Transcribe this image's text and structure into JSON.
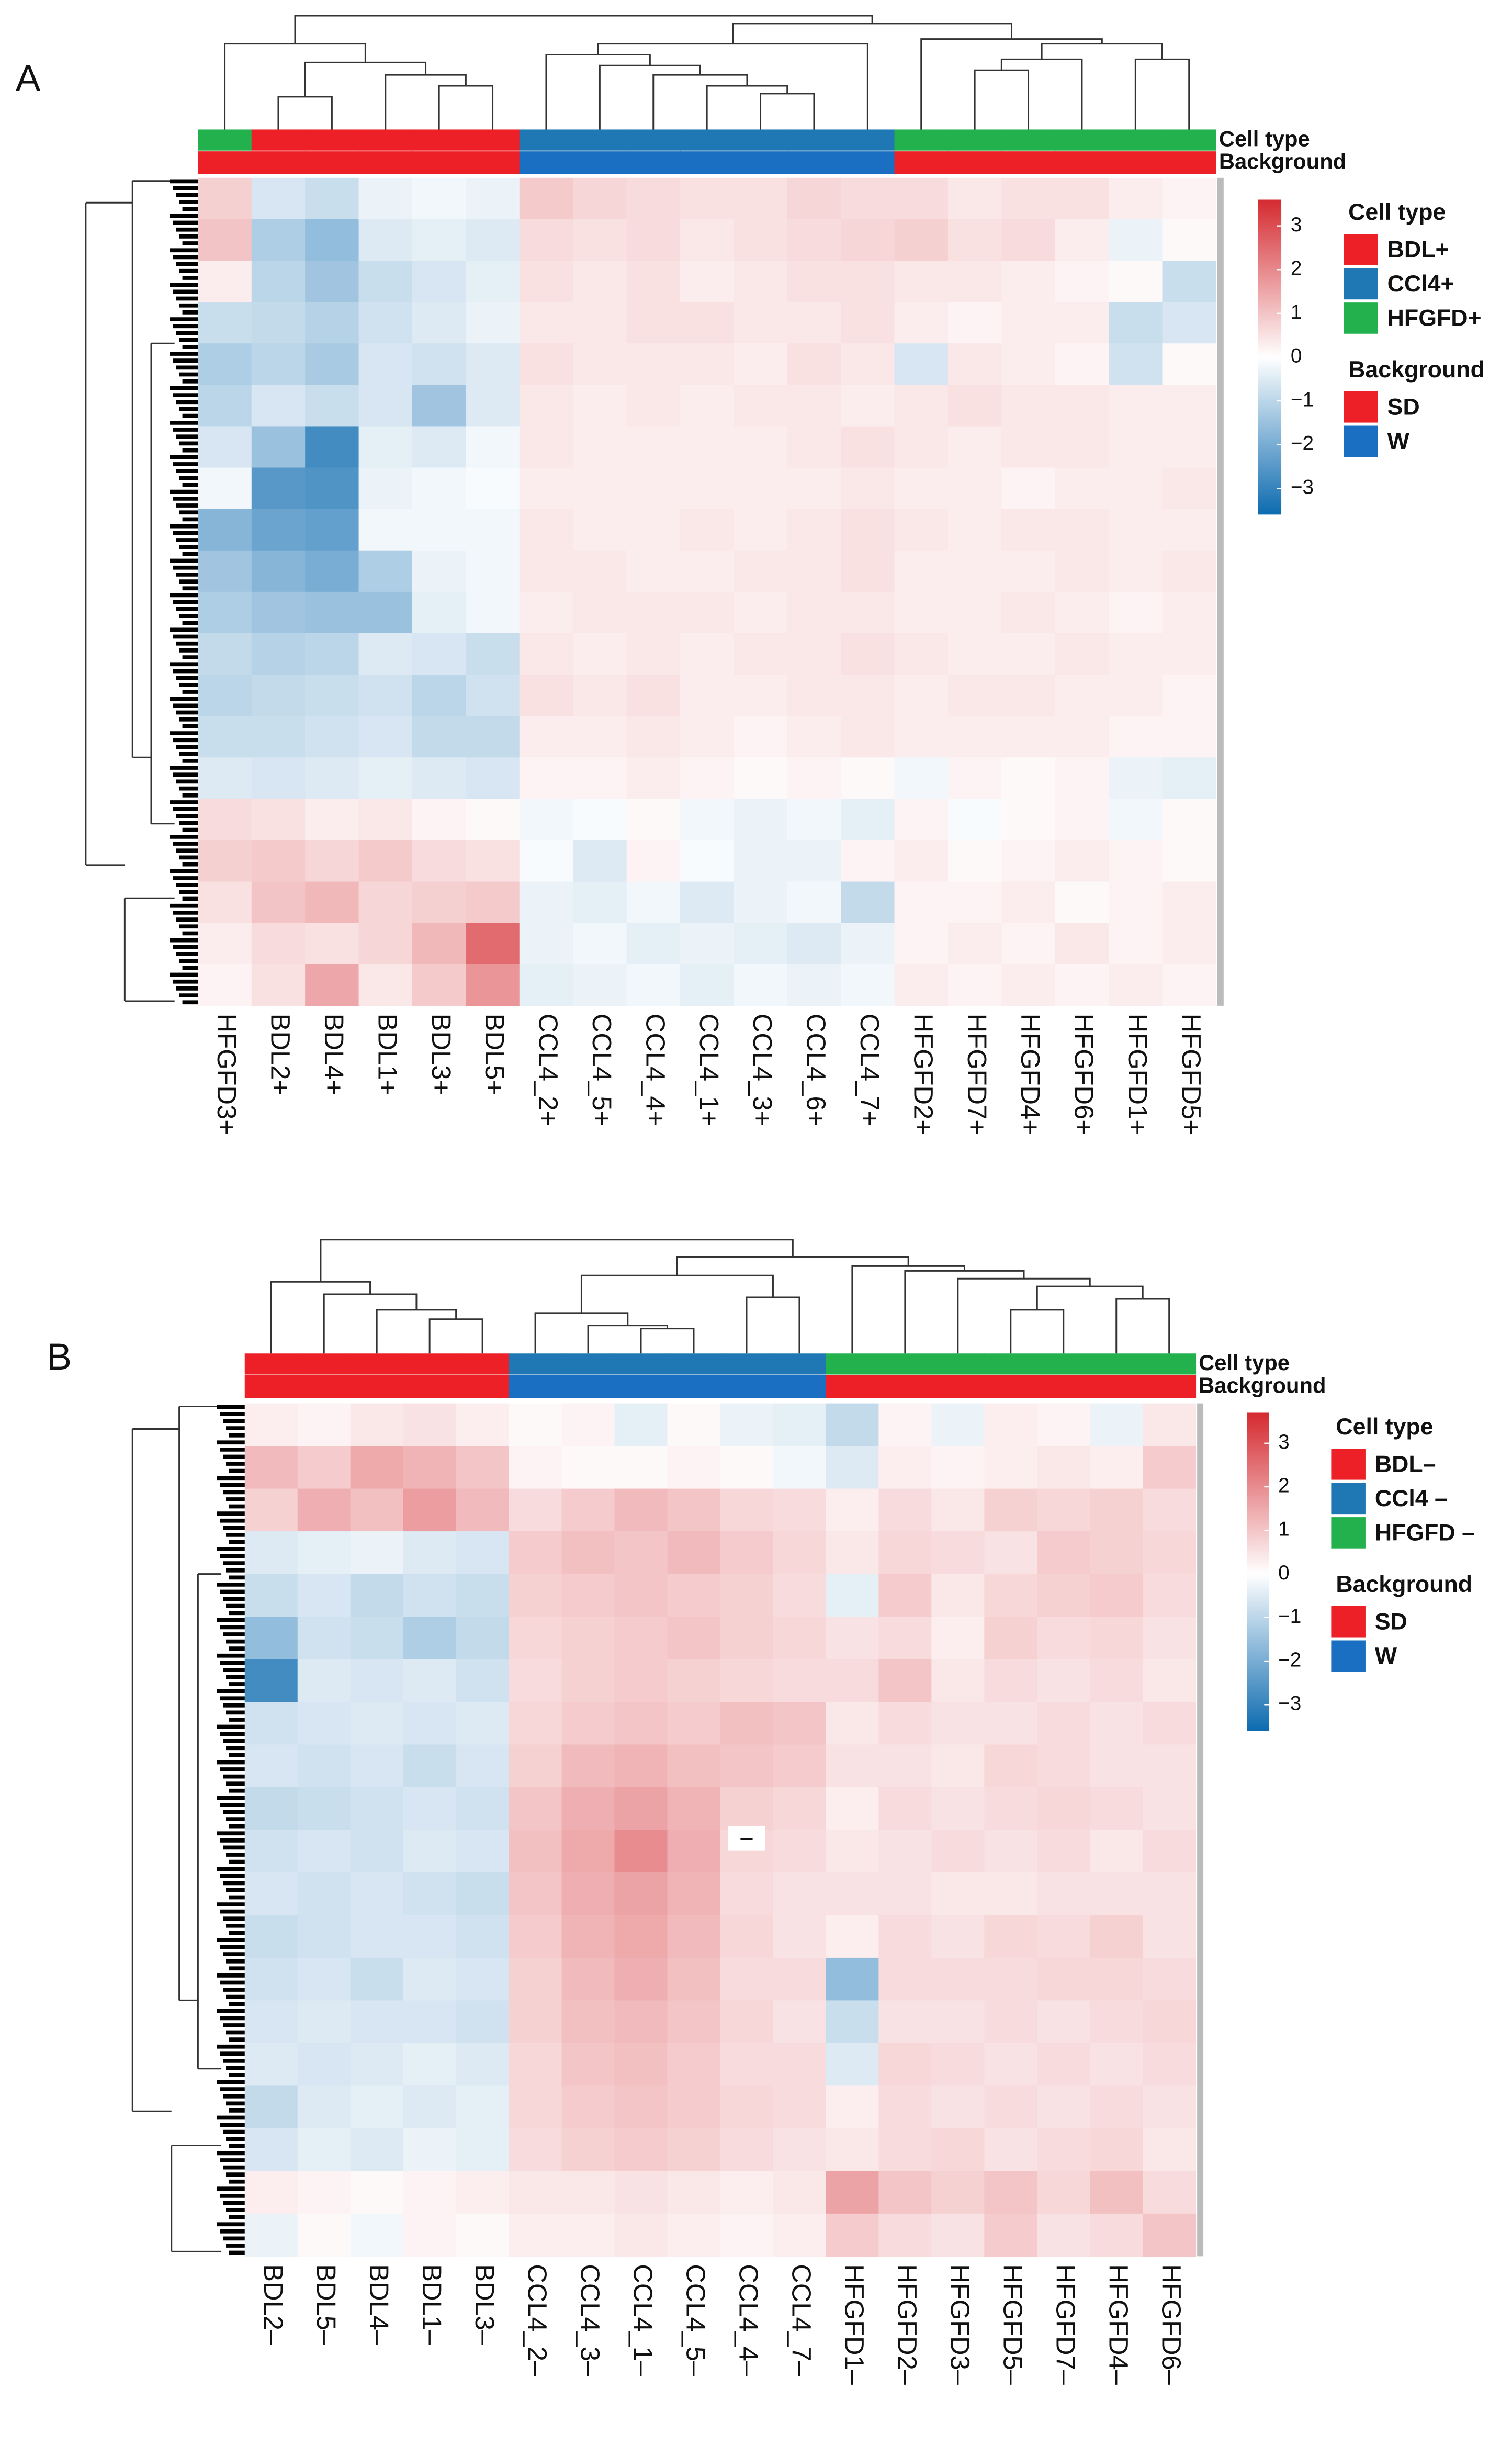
{
  "chart_data": [
    {
      "type": "heatmap",
      "panel": "A",
      "columns": [
        "HFGFD3+",
        "BDL2+",
        "BDL4+",
        "BDL1+",
        "BDL3+",
        "BDL5+",
        "CCL4_2+",
        "CCL4_5+",
        "CCL4_4+",
        "CCL4_1+",
        "CCL4_3+",
        "CCL4_6+",
        "CCL4_7+",
        "HFGFD2+",
        "HFGFD7+",
        "HFGFD4+",
        "HFGFD6+",
        "HFGFD1+",
        "HFGFD5+"
      ],
      "values": [
        [
          0.8,
          -0.6,
          -0.8,
          -0.3,
          -0.2,
          -0.3,
          0.9,
          0.7,
          0.6,
          0.5,
          0.5,
          0.7,
          0.6,
          0.6,
          0.4,
          0.5,
          0.5,
          0.3,
          0.2
        ],
        [
          1.0,
          -1.2,
          -1.6,
          -0.5,
          -0.4,
          -0.5,
          0.6,
          0.5,
          0.6,
          0.4,
          0.5,
          0.6,
          0.7,
          0.8,
          0.5,
          0.6,
          0.3,
          -0.3,
          0.1
        ],
        [
          0.3,
          -1.0,
          -1.4,
          -0.8,
          -0.6,
          -0.4,
          0.5,
          0.4,
          0.5,
          0.3,
          0.4,
          0.5,
          0.5,
          0.4,
          0.4,
          0.3,
          0.2,
          0.1,
          -0.8
        ],
        [
          -0.8,
          -0.9,
          -1.1,
          -0.7,
          -0.5,
          -0.3,
          0.4,
          0.4,
          0.5,
          0.5,
          0.4,
          0.4,
          0.5,
          0.3,
          0.2,
          0.3,
          0.3,
          -0.8,
          -0.6
        ],
        [
          -1.2,
          -1.0,
          -1.3,
          -0.6,
          -0.7,
          -0.5,
          0.5,
          0.4,
          0.4,
          0.4,
          0.3,
          0.5,
          0.4,
          -0.6,
          0.4,
          0.3,
          0.2,
          -0.7,
          0.1
        ],
        [
          -1.0,
          -0.6,
          -0.8,
          -0.6,
          -1.4,
          -0.5,
          0.4,
          0.3,
          0.4,
          0.3,
          0.4,
          0.4,
          0.3,
          0.4,
          0.5,
          0.4,
          0.4,
          0.3,
          0.3
        ],
        [
          -0.6,
          -1.5,
          -2.8,
          -0.4,
          -0.5,
          -0.2,
          0.4,
          0.3,
          0.3,
          0.3,
          0.3,
          0.4,
          0.5,
          0.4,
          0.3,
          0.4,
          0.4,
          0.3,
          0.3
        ],
        [
          -0.2,
          -2.5,
          -2.6,
          -0.3,
          -0.2,
          -0.1,
          0.3,
          0.3,
          0.3,
          0.3,
          0.3,
          0.3,
          0.4,
          0.3,
          0.3,
          0.2,
          0.3,
          0.3,
          0.4
        ],
        [
          -1.8,
          -2.2,
          -2.3,
          -0.2,
          -0.2,
          -0.2,
          0.4,
          0.3,
          0.3,
          0.4,
          0.3,
          0.4,
          0.5,
          0.4,
          0.3,
          0.4,
          0.4,
          0.3,
          0.3
        ],
        [
          -1.4,
          -1.8,
          -2.0,
          -1.2,
          -0.3,
          -0.2,
          0.4,
          0.4,
          0.3,
          0.3,
          0.4,
          0.4,
          0.5,
          0.3,
          0.3,
          0.3,
          0.4,
          0.3,
          0.4
        ],
        [
          -1.2,
          -1.4,
          -1.5,
          -1.5,
          -0.4,
          -0.2,
          0.3,
          0.4,
          0.4,
          0.4,
          0.3,
          0.4,
          0.4,
          0.3,
          0.3,
          0.4,
          0.3,
          0.2,
          0.3
        ],
        [
          -0.9,
          -1.1,
          -1.0,
          -0.5,
          -0.6,
          -0.8,
          0.4,
          0.3,
          0.4,
          0.3,
          0.4,
          0.4,
          0.5,
          0.4,
          0.3,
          0.3,
          0.4,
          0.3,
          0.3
        ],
        [
          -1.0,
          -0.9,
          -0.8,
          -0.7,
          -1.0,
          -0.7,
          0.5,
          0.4,
          0.5,
          0.3,
          0.3,
          0.4,
          0.4,
          0.3,
          0.4,
          0.4,
          0.3,
          0.3,
          0.2
        ],
        [
          -0.8,
          -0.8,
          -0.7,
          -0.6,
          -0.9,
          -0.9,
          0.3,
          0.3,
          0.4,
          0.3,
          0.2,
          0.3,
          0.4,
          0.3,
          0.3,
          0.3,
          0.3,
          0.2,
          0.2
        ],
        [
          -0.5,
          -0.6,
          -0.5,
          -0.4,
          -0.5,
          -0.6,
          0.2,
          0.2,
          0.3,
          0.2,
          0.1,
          0.2,
          0.1,
          -0.2,
          0.2,
          0.1,
          0.2,
          -0.3,
          -0.4
        ],
        [
          0.6,
          0.5,
          0.3,
          0.4,
          0.2,
          0.1,
          -0.2,
          -0.1,
          0.1,
          -0.2,
          -0.3,
          -0.2,
          -0.4,
          0.2,
          -0.1,
          0.1,
          0.2,
          -0.2,
          0.1
        ],
        [
          0.8,
          0.9,
          0.7,
          0.9,
          0.6,
          0.5,
          -0.1,
          -0.5,
          0.2,
          -0.1,
          -0.3,
          -0.3,
          0.2,
          0.3,
          0.1,
          0.2,
          0.3,
          0.2,
          0.1
        ],
        [
          0.5,
          1.0,
          1.2,
          0.7,
          0.8,
          0.9,
          -0.3,
          -0.4,
          -0.2,
          -0.5,
          -0.3,
          -0.2,
          -0.9,
          0.2,
          0.2,
          0.3,
          0.1,
          0.2,
          0.3
        ],
        [
          0.3,
          0.6,
          0.5,
          0.7,
          1.2,
          2.5,
          -0.3,
          -0.2,
          -0.4,
          -0.3,
          -0.4,
          -0.5,
          -0.3,
          0.2,
          0.3,
          0.2,
          0.4,
          0.2,
          0.3
        ],
        [
          0.2,
          0.5,
          1.5,
          0.4,
          0.9,
          1.8,
          -0.4,
          -0.3,
          -0.2,
          -0.4,
          -0.2,
          -0.3,
          -0.2,
          0.3,
          0.2,
          0.3,
          0.2,
          0.3,
          0.2
        ]
      ],
      "colorscale": [
        "#0d6bb0",
        "#ffffff",
        "#d42a30"
      ],
      "zlim": [
        -3.6,
        3.6
      ],
      "zticks": [
        3,
        2,
        1,
        0,
        {
          "value": -1,
          "label": "−1"
        },
        {
          "value": -2,
          "label": "−2"
        },
        {
          "value": -3,
          "label": "−3"
        }
      ],
      "annotations": [
        {
          "name": "Cell type",
          "groups": [
            {
              "name": "BDL+",
              "color": "#ee2027"
            },
            {
              "name": "CCl4+",
              "color": "#1f78b4"
            },
            {
              "name": "HFGFD+",
              "color": "#22b14c"
            }
          ],
          "values": [
            2,
            0,
            0,
            0,
            0,
            0,
            1,
            1,
            1,
            1,
            1,
            1,
            1,
            2,
            2,
            2,
            2,
            2,
            2
          ]
        },
        {
          "name": "Background",
          "groups": [
            {
              "name": "SD",
              "color": "#ee2027"
            },
            {
              "name": "W",
              "color": "#1a6fc2"
            }
          ],
          "values": [
            0,
            0,
            0,
            0,
            0,
            0,
            1,
            1,
            1,
            1,
            1,
            1,
            1,
            0,
            0,
            0,
            0,
            0,
            0
          ]
        }
      ]
    },
    {
      "type": "heatmap",
      "panel": "B",
      "note": "–",
      "columns": [
        "BDL2–",
        "BDL5–",
        "BDL4–",
        "BDL1–",
        "BDL3–",
        "CCL4_2–",
        "CCL4_3–",
        "CCL4_1–",
        "CCL4_5–",
        "CCL4_4–",
        "CCL4_7–",
        "HFGFD1–",
        "HFGFD2–",
        "HFGFD3–",
        "HFGFD5–",
        "HFGFD7–",
        "HFGFD4–",
        "HFGFD6–"
      ],
      "values": [
        [
          0.3,
          0.2,
          0.4,
          0.5,
          0.3,
          0.1,
          0.2,
          -0.4,
          0.1,
          -0.3,
          -0.4,
          -0.9,
          0.2,
          -0.3,
          0.3,
          0.2,
          -0.3,
          0.4
        ],
        [
          1.2,
          0.9,
          1.5,
          1.3,
          1.0,
          0.2,
          0.1,
          0.1,
          0.2,
          0.1,
          -0.2,
          -0.5,
          0.3,
          0.2,
          0.3,
          0.4,
          0.3,
          0.9
        ],
        [
          0.8,
          1.4,
          1.1,
          1.7,
          1.2,
          0.6,
          0.9,
          1.2,
          1.0,
          0.7,
          0.6,
          0.3,
          0.6,
          0.4,
          0.8,
          0.7,
          0.8,
          0.6
        ],
        [
          -0.5,
          -0.4,
          -0.3,
          -0.5,
          -0.6,
          0.9,
          1.1,
          1.0,
          1.2,
          0.9,
          0.7,
          0.4,
          0.7,
          0.6,
          0.5,
          0.9,
          0.8,
          0.7
        ],
        [
          -0.8,
          -0.6,
          -0.9,
          -0.7,
          -0.8,
          0.8,
          0.9,
          1.0,
          0.9,
          0.8,
          0.6,
          -0.4,
          0.9,
          0.4,
          0.7,
          0.8,
          0.9,
          0.6
        ],
        [
          -1.6,
          -0.7,
          -0.8,
          -1.2,
          -0.9,
          0.7,
          0.8,
          0.9,
          1.0,
          0.8,
          0.7,
          0.5,
          0.6,
          0.3,
          0.8,
          0.6,
          0.7,
          0.5
        ],
        [
          -2.8,
          -0.5,
          -0.6,
          -0.5,
          -0.7,
          0.6,
          0.8,
          0.9,
          0.8,
          0.7,
          0.6,
          0.6,
          1.0,
          0.4,
          0.6,
          0.5,
          0.6,
          0.4
        ],
        [
          -0.7,
          -0.6,
          -0.5,
          -0.6,
          -0.5,
          0.7,
          0.9,
          1.0,
          0.9,
          1.1,
          1.0,
          0.4,
          0.6,
          0.5,
          0.5,
          0.6,
          0.5,
          0.6
        ],
        [
          -0.6,
          -0.7,
          -0.6,
          -0.8,
          -0.6,
          0.8,
          1.2,
          1.3,
          1.1,
          1.0,
          0.9,
          0.5,
          0.5,
          0.4,
          0.7,
          0.6,
          0.5,
          0.5
        ],
        [
          -0.9,
          -0.8,
          -0.7,
          -0.6,
          -0.7,
          1.0,
          1.4,
          1.6,
          1.3,
          0.8,
          0.7,
          0.3,
          0.6,
          0.5,
          0.6,
          0.7,
          0.6,
          0.5
        ],
        [
          -0.7,
          -0.6,
          -0.7,
          -0.5,
          -0.6,
          1.1,
          1.5,
          2.0,
          1.4,
          0.7,
          0.6,
          0.4,
          0.5,
          0.6,
          0.5,
          0.6,
          0.4,
          0.6
        ],
        [
          -0.6,
          -0.7,
          -0.6,
          -0.7,
          -0.8,
          1.0,
          1.4,
          1.6,
          1.3,
          0.6,
          0.5,
          0.5,
          0.5,
          0.4,
          0.4,
          0.5,
          0.5,
          0.5
        ],
        [
          -0.8,
          -0.7,
          -0.6,
          -0.6,
          -0.7,
          0.9,
          1.3,
          1.5,
          1.2,
          0.7,
          0.5,
          0.3,
          0.6,
          0.5,
          0.7,
          0.6,
          0.8,
          0.5
        ],
        [
          -0.7,
          -0.6,
          -0.8,
          -0.5,
          -0.6,
          0.8,
          1.2,
          1.4,
          1.1,
          0.6,
          0.6,
          -1.6,
          0.6,
          0.6,
          0.6,
          0.7,
          0.7,
          0.6
        ],
        [
          -0.6,
          -0.5,
          -0.6,
          -0.6,
          -0.7,
          0.8,
          1.1,
          1.2,
          1.0,
          0.7,
          0.5,
          -0.8,
          0.5,
          0.5,
          0.6,
          0.5,
          0.6,
          0.7
        ],
        [
          -0.5,
          -0.6,
          -0.5,
          -0.4,
          -0.5,
          0.7,
          1.0,
          1.1,
          0.9,
          0.6,
          0.6,
          -0.5,
          0.7,
          0.6,
          0.5,
          0.6,
          0.5,
          0.6
        ],
        [
          -0.9,
          -0.5,
          -0.4,
          -0.5,
          -0.4,
          0.7,
          0.9,
          1.0,
          0.9,
          0.7,
          0.6,
          0.3,
          0.6,
          0.5,
          0.6,
          0.5,
          0.6,
          0.5
        ],
        [
          -0.6,
          -0.4,
          -0.5,
          -0.3,
          -0.4,
          0.6,
          0.8,
          0.9,
          0.8,
          0.6,
          0.5,
          0.4,
          0.6,
          0.7,
          0.5,
          0.6,
          0.7,
          0.4
        ],
        [
          0.3,
          0.2,
          0.1,
          0.2,
          0.3,
          0.4,
          0.4,
          0.5,
          0.4,
          0.3,
          0.4,
          1.6,
          1.0,
          0.8,
          1.0,
          0.7,
          1.1,
          0.6
        ],
        [
          -0.3,
          0.1,
          -0.2,
          0.2,
          0.1,
          0.3,
          0.3,
          0.4,
          0.3,
          0.2,
          0.3,
          0.9,
          0.6,
          0.5,
          0.9,
          0.5,
          0.6,
          1.0
        ]
      ],
      "colorscale": [
        "#0d6bb0",
        "#ffffff",
        "#d42a30"
      ],
      "zlim": [
        -3.6,
        3.7
      ],
      "zticks": [
        3,
        2,
        1,
        0,
        {
          "value": -1,
          "label": "−1"
        },
        {
          "value": -2,
          "label": "−2"
        },
        {
          "value": -3,
          "label": "−3"
        }
      ],
      "annotations": [
        {
          "name": "Cell type",
          "groups": [
            {
              "name": "BDL–",
              "color": "#ee2027"
            },
            {
              "name": "CCl4 –",
              "color": "#1f78b4"
            },
            {
              "name": "HFGFD –",
              "color": "#22b14c"
            }
          ],
          "values": [
            0,
            0,
            0,
            0,
            0,
            1,
            1,
            1,
            1,
            1,
            1,
            2,
            2,
            2,
            2,
            2,
            2,
            2
          ]
        },
        {
          "name": "Background",
          "groups": [
            {
              "name": "SD",
              "color": "#ee2027"
            },
            {
              "name": "W",
              "color": "#1a6fc2"
            }
          ],
          "values": [
            0,
            0,
            0,
            0,
            0,
            1,
            1,
            1,
            1,
            1,
            1,
            0,
            0,
            0,
            0,
            0,
            0,
            0
          ]
        }
      ]
    }
  ]
}
